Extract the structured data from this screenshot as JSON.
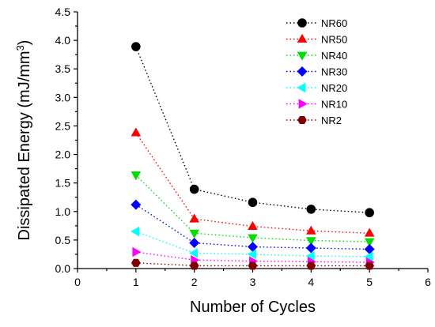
{
  "chart_data": {
    "type": "scatter",
    "title": "",
    "xlabel": "Number of Cycles",
    "ylabel": "Dissipated Energy (mJ/mm³)",
    "xlim": [
      0,
      6
    ],
    "ylim": [
      0.0,
      4.5
    ],
    "xticks": [
      "0",
      "1",
      "2",
      "3",
      "4",
      "5",
      "6"
    ],
    "yticks": [
      "0.0",
      "0.5",
      "1.0",
      "1.5",
      "2.0",
      "2.5",
      "3.0",
      "3.5",
      "4.0",
      "4.5"
    ],
    "x": [
      1,
      2,
      3,
      4,
      5
    ],
    "legend_position": "top-right",
    "grid": false,
    "line_style": "dotted",
    "series": [
      {
        "name": "NR60",
        "marker": "circle",
        "color": "#000000",
        "values": [
          3.89,
          1.39,
          1.16,
          1.04,
          0.98
        ]
      },
      {
        "name": "NR50",
        "marker": "triangle-up",
        "color": "#ff0000",
        "values": [
          2.38,
          0.87,
          0.74,
          0.66,
          0.62
        ]
      },
      {
        "name": "NR40",
        "marker": "triangle-down",
        "color": "#00dd00",
        "values": [
          1.64,
          0.62,
          0.54,
          0.49,
          0.47
        ]
      },
      {
        "name": "NR30",
        "marker": "diamond",
        "color": "#0000ff",
        "values": [
          1.12,
          0.45,
          0.38,
          0.36,
          0.34
        ]
      },
      {
        "name": "NR20",
        "marker": "triangle-left",
        "color": "#00ffff",
        "values": [
          0.65,
          0.27,
          0.25,
          0.22,
          0.21
        ]
      },
      {
        "name": "NR10",
        "marker": "triangle-right",
        "color": "#ff00ff",
        "values": [
          0.29,
          0.15,
          0.13,
          0.12,
          0.11
        ]
      },
      {
        "name": "NR2",
        "marker": "hexagon",
        "color": "#800000",
        "values": [
          0.1,
          0.05,
          0.05,
          0.05,
          0.05
        ]
      }
    ]
  }
}
